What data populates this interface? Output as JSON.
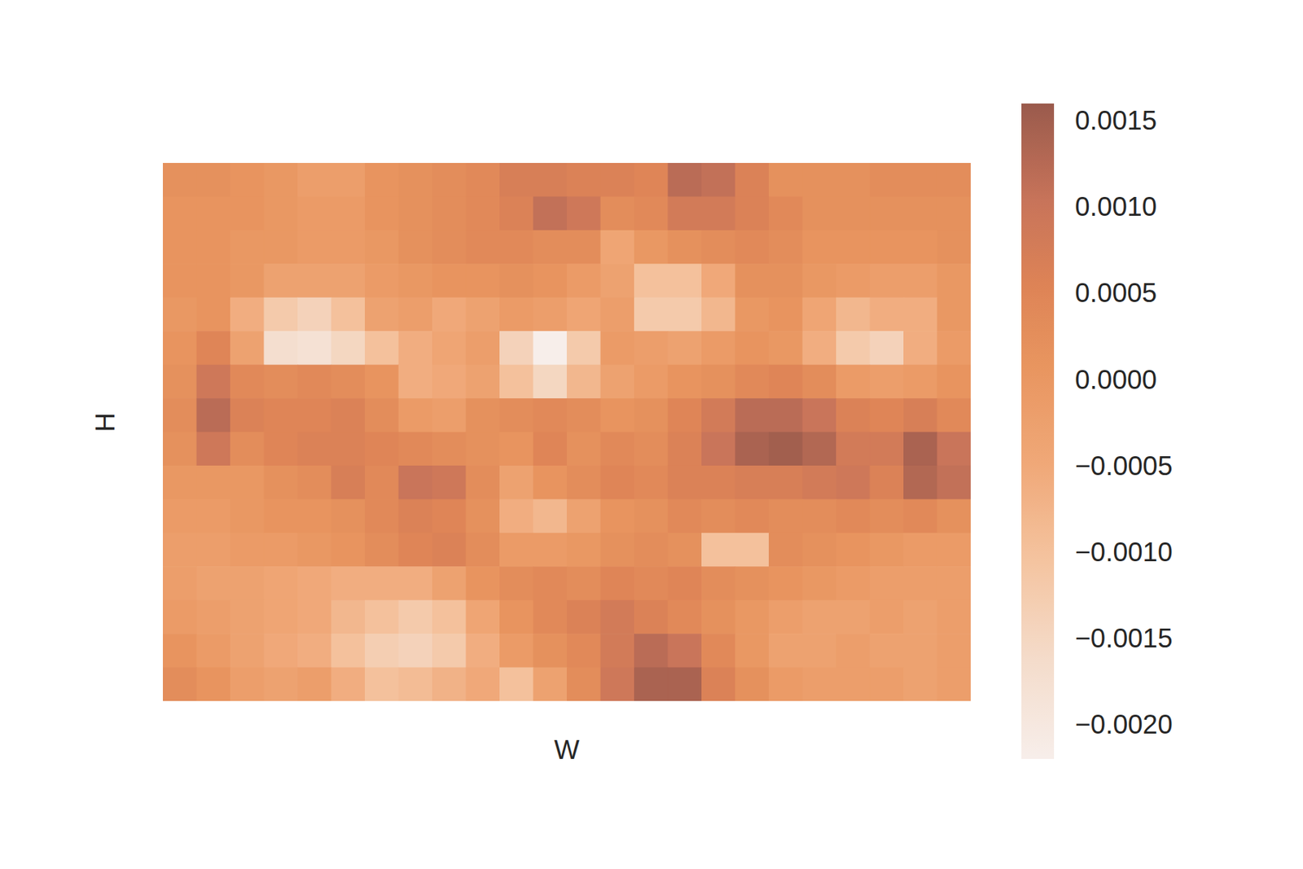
{
  "chart_data": {
    "type": "heatmap",
    "x_label": "W",
    "y_label": "H",
    "tick_labels": false,
    "cells": [
      [
        0.0002,
        0.0002,
        0.0001,
        0,
        -0.0002,
        -0.0002,
        0.0001,
        0.0002,
        0.0003,
        0.0004,
        0.0007,
        0.0007,
        0.0006,
        0.0006,
        0.0005,
        0.0012,
        0.0011,
        0.0006,
        0.0002,
        0.0002,
        0.0002,
        0.0003,
        0.0003,
        0.0003
      ],
      [
        0.0001,
        0.0001,
        0.0001,
        0,
        -0.0001,
        -0.0001,
        0.0001,
        0.0002,
        0.0003,
        0.0004,
        0.0006,
        0.0011,
        0.0009,
        0.0003,
        0.0004,
        0.0008,
        0.0008,
        0.0006,
        0.0004,
        0.0002,
        0.0002,
        0.0002,
        0.0002,
        0.0002
      ],
      [
        0.0001,
        0.0001,
        0,
        0,
        -0.0001,
        -0.0001,
        0,
        0.0002,
        0.0003,
        0.0004,
        0.0004,
        0.0003,
        0.0003,
        -0.0004,
        0,
        0.0002,
        0.0003,
        0.0004,
        0.0003,
        0.0001,
        0.0001,
        0.0001,
        0.0001,
        0.0002
      ],
      [
        0.0001,
        0.0001,
        0,
        -0.0003,
        -0.0003,
        -0.0003,
        -0.0001,
        0,
        0.0001,
        0.0001,
        0.0002,
        0.0001,
        -0.0001,
        -0.0003,
        -0.001,
        -0.001,
        -0.0005,
        0.0002,
        0.0002,
        0,
        -0.0001,
        -0.0002,
        -0.0002,
        0
      ],
      [
        0,
        0.0001,
        -0.0006,
        -0.0012,
        -0.0014,
        -0.001,
        -0.0003,
        -0.0002,
        -0.0005,
        -0.0003,
        -0.0001,
        -0.0002,
        -0.0004,
        -0.0002,
        -0.0012,
        -0.0012,
        -0.0008,
        0,
        0.0001,
        -0.0004,
        -0.0008,
        -0.0006,
        -0.0006,
        0
      ],
      [
        0.0001,
        0.0005,
        -0.0003,
        -0.0017,
        -0.0018,
        -0.0015,
        -0.001,
        -0.0006,
        -0.0004,
        -0.0002,
        -0.0014,
        -0.0022,
        -0.0012,
        -0.0001,
        -0.0002,
        -0.0003,
        -0.0001,
        0.0001,
        0,
        -0.0006,
        -0.0012,
        -0.0014,
        -0.0006,
        -0.0001
      ],
      [
        0.0002,
        0.0009,
        0.0004,
        0.0003,
        0.0004,
        0.0003,
        0.0001,
        -0.0006,
        -0.0005,
        -0.0003,
        -0.001,
        -0.0015,
        -0.0008,
        -0.0003,
        -0.0001,
        0.0001,
        0.0002,
        0.0004,
        0.0005,
        0.0003,
        -0.0001,
        -0.0002,
        -0.0001,
        0.0001
      ],
      [
        0.0003,
        0.0012,
        0.0006,
        0.0005,
        0.0005,
        0.0006,
        0.0003,
        -0.0001,
        -0.0002,
        0.0002,
        0.0003,
        0.0004,
        0.0003,
        0.0001,
        0.0002,
        0.0005,
        0.0008,
        0.0012,
        0.0012,
        0.001,
        0.0006,
        0.0005,
        0.0007,
        0.0004
      ],
      [
        0.0002,
        0.0009,
        0.0003,
        0.0005,
        0.0006,
        0.0006,
        0.0005,
        0.0004,
        0.0003,
        0.0002,
        0.0001,
        0.0005,
        0.0002,
        0.0004,
        0.0003,
        0.0006,
        0.001,
        0.0014,
        0.0015,
        0.0013,
        0.0008,
        0.0008,
        0.0014,
        0.001
      ],
      [
        0,
        0,
        0,
        0.0002,
        0.0003,
        0.0007,
        0.0004,
        0.001,
        0.0009,
        0.0003,
        -0.0003,
        0.0001,
        0.0003,
        0.0005,
        0.0004,
        0.0006,
        0.0006,
        0.0007,
        0.0007,
        0.0008,
        0.0009,
        0.0006,
        0.0013,
        0.0011
      ],
      [
        -0.0001,
        -0.0001,
        0,
        0.0001,
        0.0001,
        0.0002,
        0.0004,
        0.0006,
        0.0005,
        0.0002,
        -0.0006,
        -0.0008,
        -0.0003,
        0.0001,
        0.0002,
        0.0004,
        0.0003,
        0.0004,
        0.0003,
        0.0003,
        0.0004,
        0.0003,
        0.0004,
        0.0002
      ],
      [
        -0.0002,
        -0.0002,
        -0.0001,
        -0.0001,
        0,
        0.0001,
        0.0003,
        0.0005,
        0.0006,
        0.0003,
        -0.0001,
        -0.0001,
        0,
        0.0002,
        0.0003,
        0.0002,
        -0.001,
        -0.001,
        0.0003,
        0.0002,
        0.0001,
        0,
        -0.0001,
        -0.0001
      ],
      [
        -0.0002,
        -0.0003,
        -0.0003,
        -0.0004,
        -0.0005,
        -0.0006,
        -0.0006,
        -0.0006,
        -0.0003,
        0.0001,
        0.0003,
        0.0004,
        0.0003,
        0.0005,
        0.0004,
        0.0005,
        0.0003,
        0.0002,
        0.0001,
        0,
        -0.0001,
        -0.0002,
        -0.0002,
        -0.0002
      ],
      [
        -0.0001,
        -0.0002,
        -0.0003,
        -0.0004,
        -0.0005,
        -0.0008,
        -0.001,
        -0.0012,
        -0.001,
        -0.0004,
        0.0001,
        0.0004,
        0.0006,
        0.0008,
        0.0006,
        0.0004,
        0.0002,
        0,
        -0.0002,
        -0.0003,
        -0.0003,
        -0.0002,
        -0.0003,
        -0.0002
      ],
      [
        0.0001,
        -0.0001,
        -0.0003,
        -0.0005,
        -0.0006,
        -0.001,
        -0.0013,
        -0.0014,
        -0.0012,
        -0.0006,
        -0.0001,
        0.0002,
        0.0004,
        0.0008,
        0.0012,
        0.001,
        0.0004,
        0,
        -0.0003,
        -0.0003,
        -0.0002,
        -0.0003,
        -0.0003,
        -0.0002
      ],
      [
        0.0003,
        0.0001,
        -0.0002,
        -0.0003,
        -0.0002,
        -0.0006,
        -0.001,
        -0.0009,
        -0.0007,
        -0.0005,
        -0.001,
        -0.0003,
        0.0003,
        0.0009,
        0.0014,
        0.0014,
        0.0006,
        0.0002,
        -0.0001,
        -0.0002,
        -0.0002,
        -0.0002,
        -0.0003,
        -0.0002
      ]
    ],
    "colorbar": {
      "range": [
        -0.0022,
        0.0016
      ],
      "ticks": [
        {
          "value": -0.002,
          "label": "−0.0020"
        },
        {
          "value": -0.0015,
          "label": "−0.0015"
        },
        {
          "value": -0.001,
          "label": "−0.0010"
        },
        {
          "value": -0.0005,
          "label": "−0.0005"
        },
        {
          "value": 0,
          "label": "0.0000"
        },
        {
          "value": 0.0005,
          "label": "0.0005"
        },
        {
          "value": 0.001,
          "label": "0.0010"
        },
        {
          "value": 0.0015,
          "label": "0.0015"
        }
      ]
    }
  }
}
